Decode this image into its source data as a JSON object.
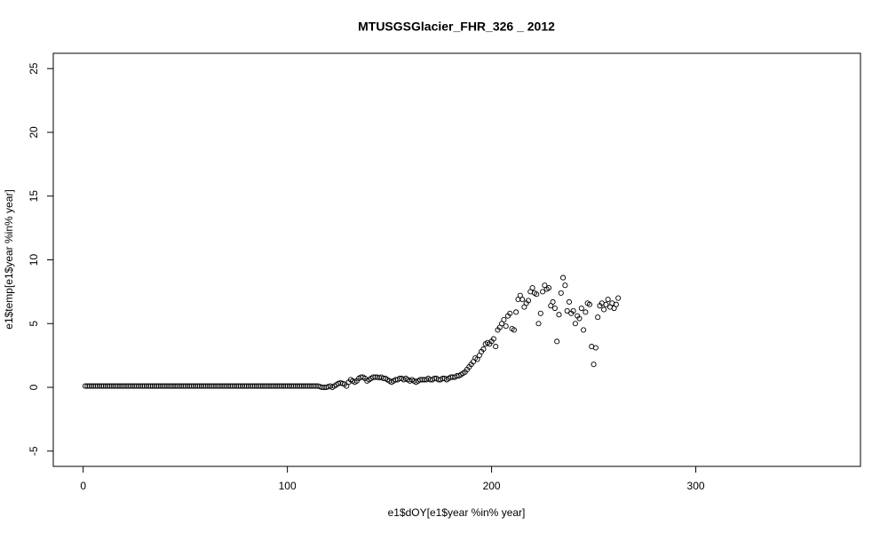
{
  "chart_data": {
    "type": "scatter",
    "title": "MTUSGSGlacier_FHR_326 _ 2012",
    "x_label": "e1$dOY[e1$year %in% year]",
    "y_label": "e1$temp[e1$year %in% year]",
    "xlim": [
      -14.64,
      380.64
    ],
    "ylim": [
      -6.2,
      26.2
    ],
    "xticks": [
      0,
      100,
      200,
      300
    ],
    "yticks": [
      -5,
      0,
      5,
      10,
      15,
      20,
      25
    ],
    "color": "#000000",
    "x": [
      1,
      2,
      3,
      4,
      5,
      6,
      7,
      8,
      9,
      10,
      11,
      12,
      13,
      14,
      15,
      16,
      17,
      18,
      19,
      20,
      21,
      22,
      23,
      24,
      25,
      26,
      27,
      28,
      29,
      30,
      31,
      32,
      33,
      34,
      35,
      36,
      37,
      38,
      39,
      40,
      41,
      42,
      43,
      44,
      45,
      46,
      47,
      48,
      49,
      50,
      51,
      52,
      53,
      54,
      55,
      56,
      57,
      58,
      59,
      60,
      61,
      62,
      63,
      64,
      65,
      66,
      67,
      68,
      69,
      70,
      71,
      72,
      73,
      74,
      75,
      76,
      77,
      78,
      79,
      80,
      81,
      82,
      83,
      84,
      85,
      86,
      87,
      88,
      89,
      90,
      91,
      92,
      93,
      94,
      95,
      96,
      97,
      98,
      99,
      100,
      101,
      102,
      103,
      104,
      105,
      106,
      107,
      108,
      109,
      110,
      111,
      112,
      113,
      114,
      115,
      116,
      117,
      118,
      119,
      120,
      121,
      122,
      123,
      124,
      125,
      126,
      127,
      128,
      129,
      130,
      131,
      132,
      133,
      134,
      135,
      136,
      137,
      138,
      139,
      140,
      141,
      142,
      143,
      144,
      145,
      146,
      147,
      148,
      149,
      150,
      151,
      152,
      153,
      154,
      155,
      156,
      157,
      158,
      159,
      160,
      161,
      162,
      163,
      164,
      165,
      166,
      167,
      168,
      169,
      170,
      171,
      172,
      173,
      174,
      175,
      176,
      177,
      178,
      179,
      180,
      181,
      182,
      183,
      184,
      185,
      186,
      187,
      188,
      189,
      190,
      191,
      192,
      193,
      194,
      195,
      196,
      197,
      198,
      199,
      200,
      201,
      202,
      203,
      204,
      205,
      206,
      207,
      208,
      209,
      210,
      211,
      212,
      213,
      214,
      215,
      216,
      217,
      218,
      219,
      220,
      221,
      222,
      223,
      224,
      225,
      226,
      227,
      228,
      229,
      230,
      231,
      232,
      233,
      234,
      235,
      236,
      237,
      238,
      239,
      240,
      241,
      242,
      243,
      244,
      245,
      246,
      247,
      248,
      249,
      250,
      251,
      252,
      253,
      254,
      255,
      256,
      257,
      258,
      259,
      260,
      261,
      262
    ],
    "values": [
      0.1,
      0.1,
      0.1,
      0.1,
      0.1,
      0.1,
      0.1,
      0.1,
      0.1,
      0.1,
      0.1,
      0.1,
      0.1,
      0.1,
      0.1,
      0.1,
      0.1,
      0.1,
      0.1,
      0.1,
      0.1,
      0.1,
      0.1,
      0.1,
      0.1,
      0.1,
      0.1,
      0.1,
      0.1,
      0.1,
      0.1,
      0.1,
      0.1,
      0.1,
      0.1,
      0.1,
      0.1,
      0.1,
      0.1,
      0.1,
      0.1,
      0.1,
      0.1,
      0.1,
      0.1,
      0.1,
      0.1,
      0.1,
      0.1,
      0.1,
      0.1,
      0.1,
      0.1,
      0.1,
      0.1,
      0.1,
      0.1,
      0.1,
      0.1,
      0.1,
      0.1,
      0.1,
      0.1,
      0.1,
      0.1,
      0.1,
      0.1,
      0.1,
      0.1,
      0.1,
      0.1,
      0.1,
      0.1,
      0.1,
      0.1,
      0.1,
      0.1,
      0.1,
      0.1,
      0.1,
      0.1,
      0.1,
      0.1,
      0.1,
      0.1,
      0.1,
      0.1,
      0.1,
      0.1,
      0.1,
      0.1,
      0.1,
      0.1,
      0.1,
      0.1,
      0.1,
      0.1,
      0.1,
      0.1,
      0.1,
      0.1,
      0.1,
      0.1,
      0.1,
      0.1,
      0.1,
      0.1,
      0.1,
      0.1,
      0.1,
      0.1,
      0.1,
      0.1,
      0.1,
      0.1,
      0.05,
      0.0,
      0.0,
      0.0,
      0.05,
      0.1,
      0.0,
      0.1,
      0.2,
      0.3,
      0.35,
      0.3,
      0.25,
      0.1,
      0.4,
      0.6,
      0.5,
      0.4,
      0.5,
      0.7,
      0.8,
      0.8,
      0.7,
      0.5,
      0.6,
      0.7,
      0.8,
      0.8,
      0.8,
      0.75,
      0.8,
      0.7,
      0.7,
      0.6,
      0.5,
      0.4,
      0.5,
      0.6,
      0.6,
      0.7,
      0.7,
      0.6,
      0.7,
      0.6,
      0.5,
      0.6,
      0.5,
      0.4,
      0.5,
      0.6,
      0.6,
      0.6,
      0.6,
      0.7,
      0.6,
      0.6,
      0.7,
      0.7,
      0.6,
      0.6,
      0.7,
      0.7,
      0.6,
      0.7,
      0.8,
      0.8,
      0.8,
      0.9,
      0.9,
      1.0,
      1.1,
      1.2,
      1.4,
      1.6,
      1.8,
      2.0,
      2.3,
      2.2,
      2.5,
      2.8,
      3.0,
      3.4,
      3.5,
      3.4,
      3.6,
      3.8,
      3.2,
      4.5,
      4.7,
      5.0,
      5.3,
      4.8,
      5.6,
      5.8,
      4.6,
      4.5,
      5.9,
      6.9,
      7.2,
      6.9,
      6.3,
      6.6,
      6.8,
      7.5,
      7.8,
      7.4,
      7.3,
      5.0,
      5.8,
      7.5,
      8.0,
      7.7,
      7.8,
      6.4,
      6.7,
      6.2,
      3.6,
      5.7,
      7.4,
      8.6,
      8.0,
      6.0,
      6.7,
      5.8,
      6.0,
      5.0,
      5.6,
      5.4,
      6.2,
      4.5,
      5.9,
      6.6,
      6.5,
      3.2,
      1.8,
      3.1,
      5.5,
      6.4,
      6.6,
      6.1,
      6.5,
      6.9,
      6.3,
      6.6,
      6.2,
      6.5,
      7.0
    ]
  }
}
